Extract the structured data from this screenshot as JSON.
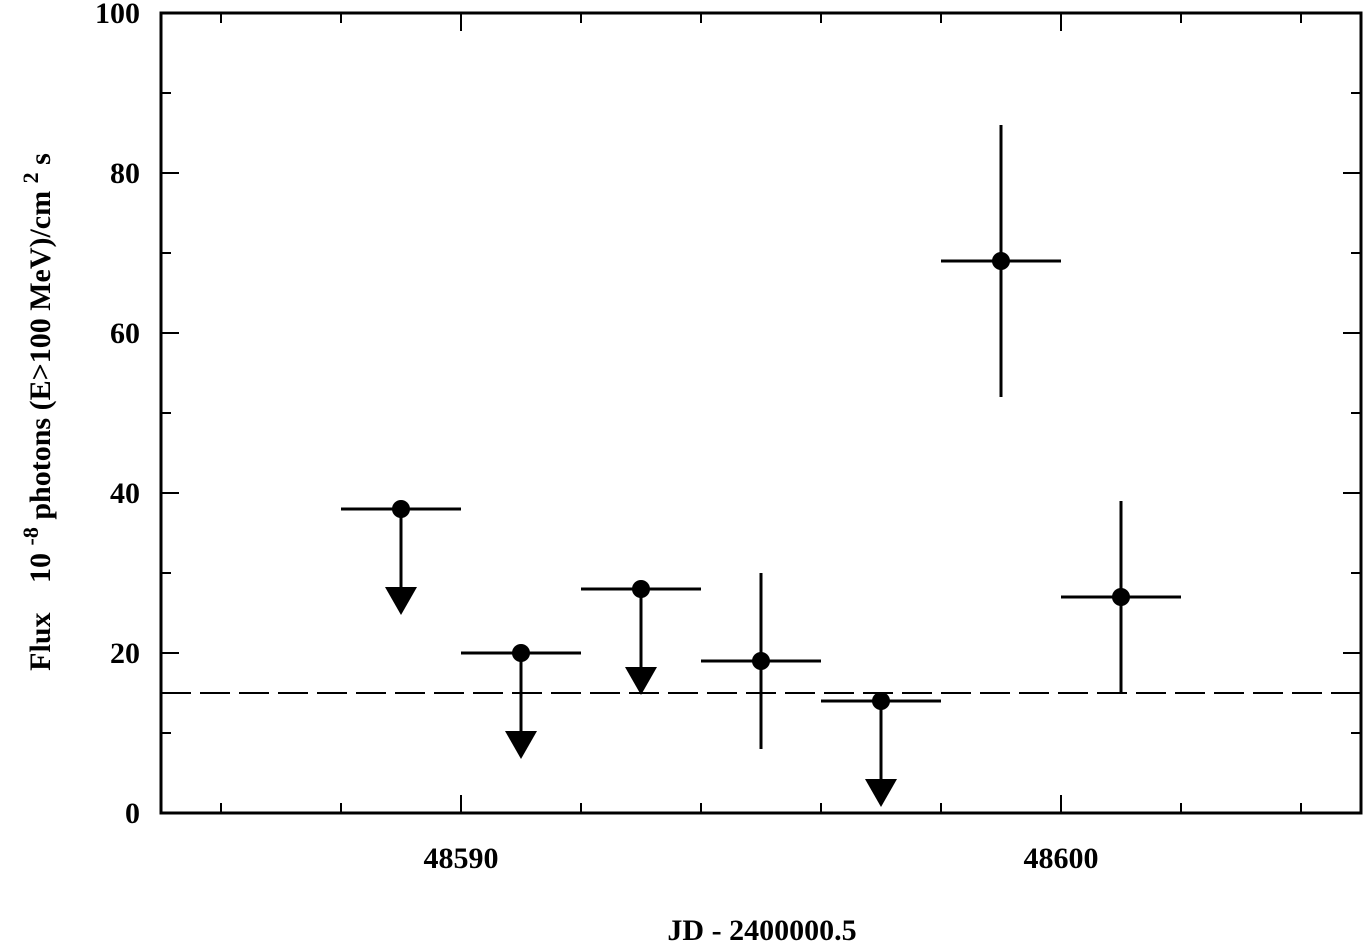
{
  "chart_data": {
    "type": "scatter",
    "xlabel": "JD - 2400000.5",
    "ylabel": {
      "prefix": "Flux",
      "base": "10",
      "exp": "-8",
      "mid": " photons (E>100 MeV)/cm",
      "exp2": "2",
      "tail": " s"
    },
    "xlim": [
      48585,
      48605
    ],
    "ylim": [
      0,
      100
    ],
    "x_ticks": [
      48590,
      48600
    ],
    "y_ticks": [
      0,
      20,
      40,
      60,
      80,
      100
    ],
    "reference_level": 15,
    "grid": false,
    "points": [
      {
        "x": 48589,
        "y": 38,
        "xerr": 1,
        "kind": "upper_limit"
      },
      {
        "x": 48591,
        "y": 20,
        "xerr": 1,
        "kind": "upper_limit"
      },
      {
        "x": 48593,
        "y": 28,
        "xerr": 1,
        "kind": "upper_limit"
      },
      {
        "x": 48595,
        "y": 19,
        "xerr": 1,
        "ylow": 8,
        "yhigh": 30,
        "kind": "detection"
      },
      {
        "x": 48597,
        "y": 14,
        "xerr": 1,
        "kind": "upper_limit"
      },
      {
        "x": 48599,
        "y": 69,
        "xerr": 1,
        "ylow": 52,
        "yhigh": 86,
        "kind": "detection"
      },
      {
        "x": 48601,
        "y": 27,
        "xerr": 1,
        "ylow": 15,
        "yhigh": 39,
        "kind": "detection"
      }
    ]
  }
}
